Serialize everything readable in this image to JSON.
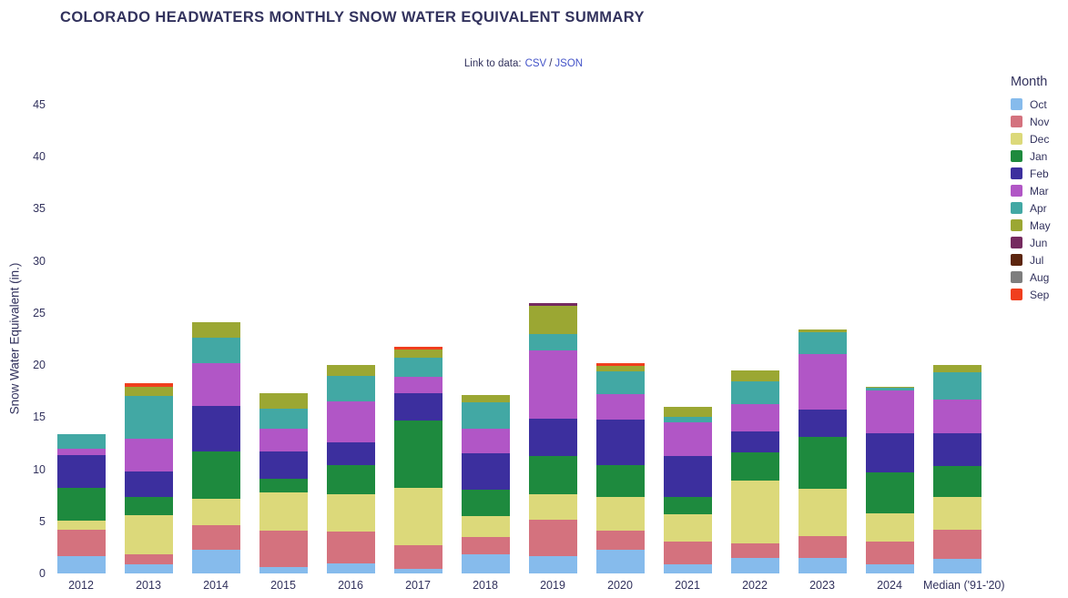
{
  "page": {
    "title": "COLORADO HEADWATERS MONTHLY SNOW WATER EQUIVALENT SUMMARY",
    "data_links": {
      "prefix": "Link to data:",
      "csv": "CSV",
      "separator": "/",
      "json": "JSON"
    }
  },
  "chart_data": {
    "type": "bar",
    "stacked": true,
    "title": "COLORADO HEADWATERS MONTHLY SNOW WATER EQUIVALENT SUMMARY",
    "xlabel": "",
    "ylabel": "Snow Water Equivalent (in.)",
    "ylim": [
      0,
      45
    ],
    "yticks": [
      0,
      5,
      10,
      15,
      20,
      25,
      30,
      35,
      40,
      45
    ],
    "grid": false,
    "legend_title": "Month",
    "legend_position": "right",
    "categories": [
      "2012",
      "2013",
      "2014",
      "2015",
      "2016",
      "2017",
      "2018",
      "2019",
      "2020",
      "2021",
      "2022",
      "2023",
      "2024",
      "Median ('91-'20)"
    ],
    "series": [
      {
        "name": "Oct",
        "color": "#86bbec",
        "values": [
          1.7,
          0.9,
          2.3,
          0.6,
          1.0,
          0.4,
          1.8,
          1.7,
          2.3,
          0.9,
          1.5,
          1.5,
          0.9,
          1.4
        ]
      },
      {
        "name": "Nov",
        "color": "#d4727e",
        "values": [
          2.5,
          0.9,
          2.3,
          3.5,
          3.0,
          2.3,
          1.7,
          3.5,
          1.8,
          2.2,
          1.4,
          2.1,
          2.2,
          2.8
        ]
      },
      {
        "name": "Dec",
        "color": "#dcd97a",
        "values": [
          0.9,
          3.8,
          2.6,
          3.7,
          3.6,
          5.5,
          2.0,
          2.4,
          3.2,
          2.6,
          6.0,
          4.5,
          2.7,
          3.1
        ]
      },
      {
        "name": "Jan",
        "color": "#1e8a3e",
        "values": [
          3.1,
          1.7,
          4.5,
          1.3,
          2.8,
          6.5,
          2.5,
          3.7,
          3.1,
          1.6,
          2.7,
          5.0,
          3.9,
          3.0
        ]
      },
      {
        "name": "Feb",
        "color": "#3c2f9e",
        "values": [
          3.2,
          2.5,
          4.4,
          2.6,
          2.2,
          2.6,
          3.5,
          3.6,
          4.4,
          4.0,
          2.0,
          2.6,
          3.8,
          3.2
        ]
      },
      {
        "name": "Mar",
        "color": "#b156c6",
        "values": [
          0.6,
          3.1,
          4.1,
          2.2,
          3.9,
          1.6,
          2.4,
          6.5,
          2.4,
          3.2,
          2.7,
          5.4,
          4.1,
          3.2
        ]
      },
      {
        "name": "Apr",
        "color": "#42a8a4",
        "values": [
          1.4,
          4.1,
          2.4,
          1.9,
          2.5,
          1.8,
          2.5,
          1.6,
          2.2,
          0.5,
          2.1,
          2.1,
          0.2,
          2.6
        ]
      },
      {
        "name": "May",
        "color": "#9ba733",
        "values": [
          0,
          0.9,
          1.5,
          1.5,
          1.0,
          0.8,
          0.7,
          2.7,
          0.5,
          1.0,
          1.1,
          0.2,
          0.1,
          0.7
        ]
      },
      {
        "name": "Jun",
        "color": "#752a5f",
        "values": [
          0,
          0,
          0,
          0,
          0,
          0,
          0,
          0.3,
          0,
          0,
          0,
          0,
          0,
          0
        ]
      },
      {
        "name": "Jul",
        "color": "#5c250e",
        "values": [
          0,
          0,
          0,
          0,
          0,
          0,
          0,
          0,
          0,
          0,
          0,
          0,
          0,
          0
        ]
      },
      {
        "name": "Aug",
        "color": "#7e7e7e",
        "values": [
          0,
          0,
          0,
          0,
          0,
          0,
          0,
          0,
          0,
          0,
          0,
          0,
          0,
          0
        ]
      },
      {
        "name": "Sep",
        "color": "#f03e1d",
        "values": [
          0,
          0.4,
          0,
          0,
          0,
          0.3,
          0,
          0,
          0.3,
          0,
          0,
          0,
          0,
          0
        ]
      }
    ]
  }
}
